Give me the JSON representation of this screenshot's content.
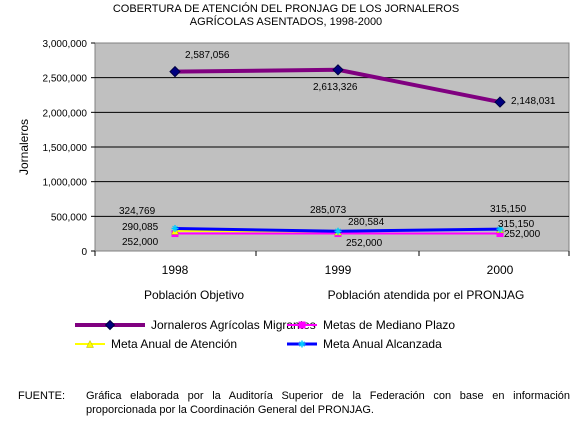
{
  "chart_data": {
    "type": "line",
    "title_line1": "COBERTURA DE ATENCIÓN DEL PRONJAG DE LOS JORNALEROS",
    "title_line2": "AGRÍCOLAS ASENTADOS,  1998-2000",
    "ylabel": "Jornaleros",
    "ylim": [
      0,
      3000000
    ],
    "yticks": [
      "0",
      "500,000",
      "1,000,000",
      "1,500,000",
      "2,000,000",
      "2,500,000",
      "3,000,000"
    ],
    "categories": [
      "1998",
      "1999",
      "2000"
    ],
    "x_sublabels": [
      "Población Objetivo",
      "Población atendida por el PRONJAG"
    ],
    "grid": true,
    "series": [
      {
        "name": "Jornaleros Agrícolas Migrantes",
        "values": [
          2587056,
          2613326,
          2148031
        ],
        "labels": [
          "2,587,056",
          "2,613,326",
          "2,148,031"
        ],
        "color": "#800080",
        "marker": "diamond",
        "marker_color": "#000080"
      },
      {
        "name": "Metas de Mediano Plazo",
        "values": [
          252000,
          252000,
          252000
        ],
        "labels": [
          "252,000",
          "252,000",
          "252,000"
        ],
        "color": "#ff00ff",
        "marker": "square",
        "marker_color": "#ff00ff"
      },
      {
        "name": "Meta Anual de Atención",
        "values": [
          290085,
          280584,
          315150
        ],
        "labels": [
          "290,085",
          "280,584",
          "315,150"
        ],
        "color": "#ffff00",
        "marker": "triangle",
        "marker_color": "#ffff00"
      },
      {
        "name": "Meta Anual Alcanzada",
        "values": [
          324769,
          285073,
          315150
        ],
        "labels": [
          "324,769",
          "285,073",
          "315,150"
        ],
        "color": "#0000ff",
        "marker": "star",
        "marker_color": "#00ccff"
      }
    ]
  },
  "source": {
    "label": "FUENTE:",
    "text": "Gráfica elaborada por la Auditoría Superior de la Federación con base en información proporcionada por la Coordinación General del PRONJAG."
  }
}
